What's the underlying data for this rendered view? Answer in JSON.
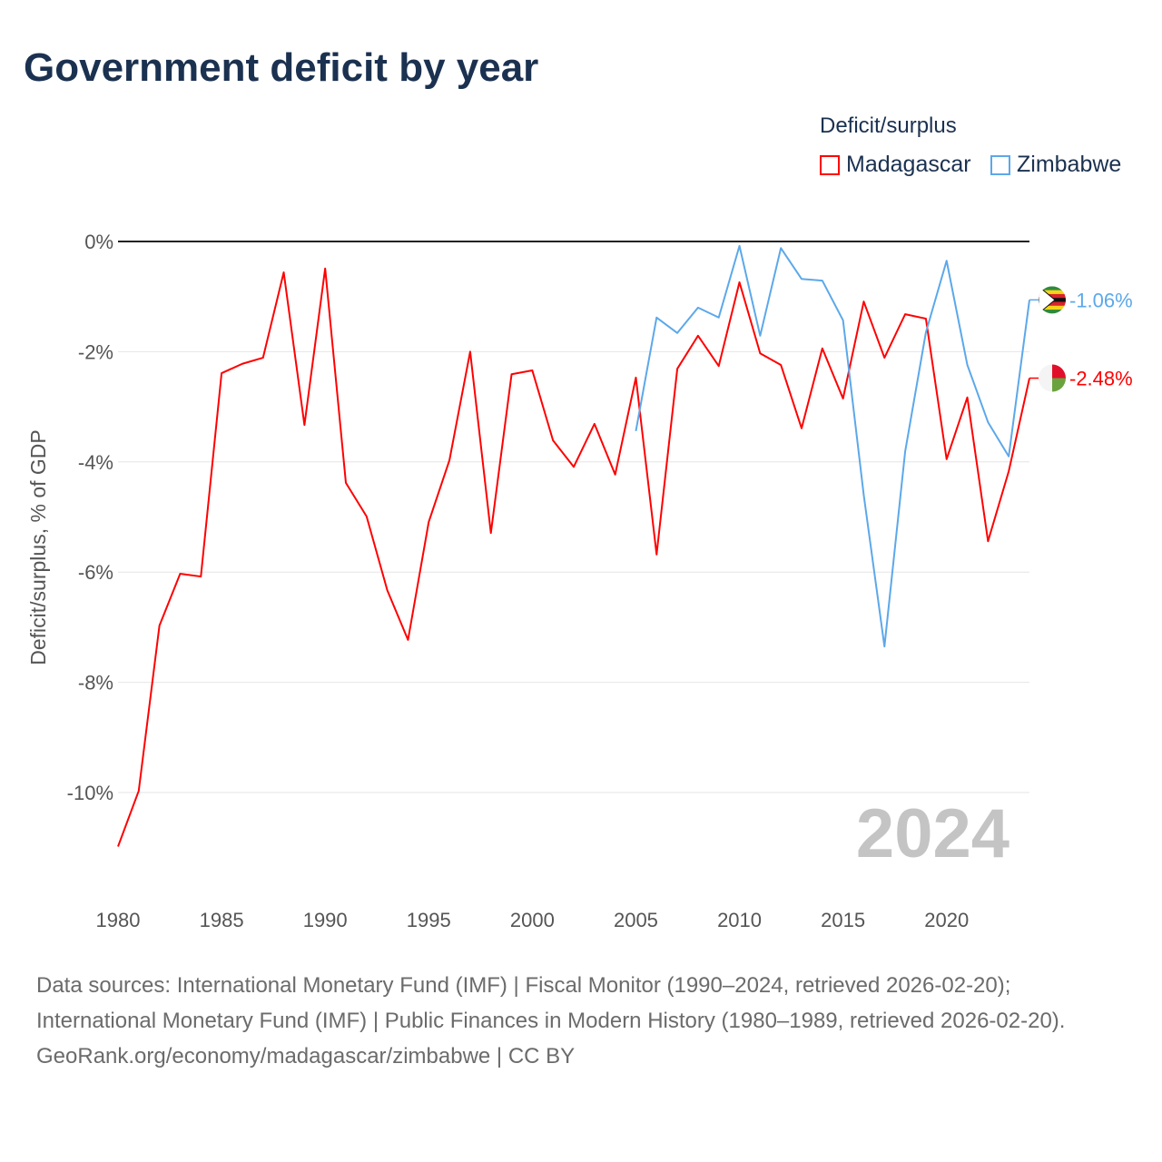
{
  "title": "Government deficit by year",
  "legend": {
    "title": "Deficit/surplus",
    "items": [
      {
        "name": "Madagascar",
        "color": "#ff0000"
      },
      {
        "name": "Zimbabwe",
        "color": "#5ca8ea"
      }
    ]
  },
  "watermark_year": "2024",
  "sources": {
    "line1": "Data sources: International Monetary Fund (IMF) | Fiscal Monitor (1990–2024, retrieved 2026-02-20);",
    "line2": "International Monetary Fund (IMF) | Public Finances in Modern History (1980–1989, retrieved 2026-02-20).",
    "credit": "GeoRank.org/economy/madagascar/zimbabwe | CC BY"
  },
  "chart_data": {
    "type": "line",
    "title": "Government deficit by year",
    "xlabel": "",
    "ylabel": "Deficit/surplus, % of GDP",
    "xlim": [
      1980,
      2024
    ],
    "ylim": [
      -11,
      0
    ],
    "xticks": [
      1980,
      1985,
      1990,
      1995,
      2000,
      2005,
      2010,
      2015,
      2020
    ],
    "yticks": [
      {
        "v": 0,
        "label": "0%"
      },
      {
        "v": -2,
        "label": "-2%"
      },
      {
        "v": -4,
        "label": "-4%"
      },
      {
        "v": -6,
        "label": "-6%"
      },
      {
        "v": -8,
        "label": "-8%"
      },
      {
        "v": -10,
        "label": "-10%"
      }
    ],
    "grid": true,
    "legend_position": "top-right",
    "series": [
      {
        "name": "Madagascar",
        "color": "#ff0000",
        "end_label": "-2.48%",
        "x": [
          1980,
          1981,
          1982,
          1983,
          1984,
          1985,
          1986,
          1987,
          1988,
          1989,
          1990,
          1991,
          1992,
          1993,
          1994,
          1995,
          1996,
          1997,
          1998,
          1999,
          2000,
          2001,
          2002,
          2003,
          2004,
          2005,
          2006,
          2007,
          2008,
          2009,
          2010,
          2011,
          2012,
          2013,
          2014,
          2015,
          2016,
          2017,
          2018,
          2019,
          2020,
          2021,
          2022,
          2023,
          2024
        ],
        "values": [
          -10.98,
          -9.97,
          -6.97,
          -6.03,
          -6.08,
          -2.39,
          -2.22,
          -2.11,
          -0.56,
          -3.33,
          -0.49,
          -4.38,
          -4.99,
          -6.33,
          -7.23,
          -5.09,
          -3.97,
          -2.0,
          -5.29,
          -2.41,
          -2.34,
          -3.61,
          -4.09,
          -3.31,
          -4.23,
          -2.47,
          -5.68,
          -2.31,
          -1.71,
          -2.26,
          -0.74,
          -2.03,
          -2.24,
          -3.39,
          -1.94,
          -2.85,
          -1.09,
          -2.11,
          -1.32,
          -1.4,
          -3.95,
          -2.83,
          -5.44,
          -4.17,
          -2.48
        ]
      },
      {
        "name": "Zimbabwe",
        "color": "#5ca8ea",
        "end_label": "-1.06%",
        "x": [
          2005,
          2006,
          2007,
          2008,
          2009,
          2010,
          2011,
          2012,
          2013,
          2014,
          2015,
          2016,
          2017,
          2018,
          2019,
          2020,
          2021,
          2022,
          2023,
          2024
        ],
        "values": [
          -3.44,
          -1.38,
          -1.66,
          -1.2,
          -1.38,
          -0.08,
          -1.71,
          -0.12,
          -0.68,
          -0.71,
          -1.43,
          -4.6,
          -7.35,
          -3.81,
          -1.65,
          -0.35,
          -2.24,
          -3.28,
          -3.9,
          -1.06
        ]
      }
    ]
  }
}
